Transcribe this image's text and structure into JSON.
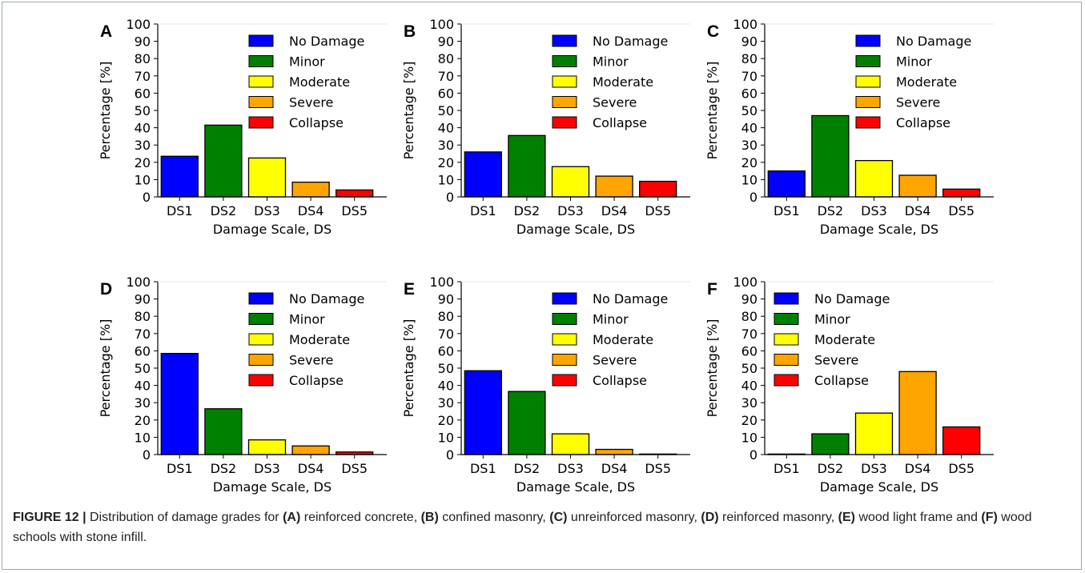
{
  "caption": {
    "lead": "FIGURE 12 |",
    "text": " Distribution of damage grades for ",
    "parts": [
      {
        "letter": "(A)",
        "text": " reinforced concrete, "
      },
      {
        "letter": "(B)",
        "text": " confined masonry, "
      },
      {
        "letter": "(C)",
        "text": " unreinforced masonry, "
      },
      {
        "letter": "(D)",
        "text": " reinforced masonry, "
      },
      {
        "letter": "(E)",
        "text": " wood light frame and "
      },
      {
        "letter": "(F)",
        "text": " wood schools with stone infill."
      }
    ]
  },
  "legend": {
    "entries": [
      "No Damage",
      "Minor",
      "Moderate",
      "Severe",
      "Collapse"
    ],
    "colors": [
      "#0000ff",
      "#008000",
      "#ffff00",
      "#ffa500",
      "#ff0000"
    ]
  },
  "chart_data": [
    {
      "type": "bar",
      "panel": "A",
      "categories": [
        "DS1",
        "DS2",
        "DS3",
        "DS4",
        "DS5"
      ],
      "values": [
        23.5,
        41.5,
        22.5,
        8.5,
        4
      ],
      "xlabel": "Damage Scale, DS",
      "ylabel": "Percentage [%]",
      "ylim": [
        0,
        100
      ],
      "yticks": [
        "0",
        "10",
        "20",
        "30",
        "40",
        "50",
        "60",
        "70",
        "80",
        "90",
        "100"
      ],
      "legend_placement": "top-right"
    },
    {
      "type": "bar",
      "panel": "B",
      "categories": [
        "DS1",
        "DS2",
        "DS3",
        "DS4",
        "DS5"
      ],
      "values": [
        26,
        35.5,
        17.5,
        12,
        9
      ],
      "xlabel": "Damage Scale, DS",
      "ylabel": "Percentage [%]",
      "ylim": [
        0,
        100
      ],
      "yticks": [
        "0",
        "10",
        "20",
        "30",
        "40",
        "50",
        "60",
        "70",
        "80",
        "90",
        "100"
      ],
      "legend_placement": "top-right"
    },
    {
      "type": "bar",
      "panel": "C",
      "categories": [
        "DS1",
        "DS2",
        "DS3",
        "DS4",
        "DS5"
      ],
      "values": [
        15,
        47,
        21,
        12.5,
        4.5
      ],
      "xlabel": "Damage Scale, DS",
      "ylabel": "Percentage [%]",
      "ylim": [
        0,
        100
      ],
      "yticks": [
        "0",
        "10",
        "20",
        "30",
        "40",
        "50",
        "60",
        "70",
        "80",
        "90",
        "100"
      ],
      "legend_placement": "top-right"
    },
    {
      "type": "bar",
      "panel": "D",
      "categories": [
        "DS1",
        "DS2",
        "DS3",
        "DS4",
        "DS5"
      ],
      "values": [
        58.5,
        26.5,
        8.5,
        5,
        1.5
      ],
      "xlabel": "Damage Scale, DS",
      "ylabel": "Percentage [%]",
      "ylim": [
        0,
        100
      ],
      "yticks": [
        "0",
        "10",
        "20",
        "30",
        "40",
        "50",
        "60",
        "70",
        "80",
        "90",
        "100"
      ],
      "legend_placement": "top-right"
    },
    {
      "type": "bar",
      "panel": "E",
      "categories": [
        "DS1",
        "DS2",
        "DS3",
        "DS4",
        "DS5"
      ],
      "values": [
        48.5,
        36.5,
        12,
        3,
        0.3
      ],
      "xlabel": "Damage Scale, DS",
      "ylabel": "Percentage [%]",
      "ylim": [
        0,
        100
      ],
      "yticks": [
        "0",
        "10",
        "20",
        "30",
        "40",
        "50",
        "60",
        "70",
        "80",
        "90",
        "100"
      ],
      "legend_placement": "top-right"
    },
    {
      "type": "bar",
      "panel": "F",
      "categories": [
        "DS1",
        "DS2",
        "DS3",
        "DS4",
        "DS5"
      ],
      "values": [
        0.3,
        12,
        24,
        48,
        16
      ],
      "xlabel": "Damage Scale, DS",
      "ylabel": "Percentage [%]",
      "ylim": [
        0,
        100
      ],
      "yticks": [
        "0",
        "10",
        "20",
        "30",
        "40",
        "50",
        "60",
        "70",
        "80",
        "90",
        "100"
      ],
      "legend_placement": "top-left"
    }
  ]
}
